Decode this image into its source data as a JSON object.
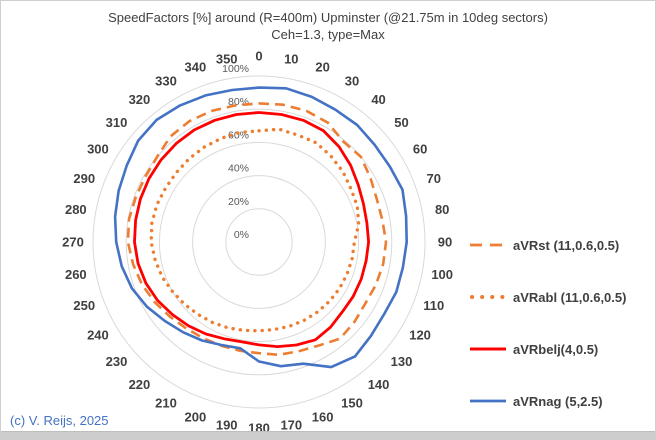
{
  "title": "SpeedFactors [%] around (R=400m) Upminster (@21.75m in 10deg sectors)",
  "subtitle": "Ceh=1.3, type=Max",
  "copyright": "(c) V. Reijs, 2025",
  "colors": {
    "orange_series": "#ED7D31",
    "red_series": "#FF0000",
    "blue_series": "#4472C4",
    "gridline": "#D9D9D9",
    "label_dark": "#404040",
    "label_gray": "#595959",
    "copyright_blue": "#4472C4"
  },
  "chart_data": {
    "type": "radar",
    "angle_unit": "deg_compass_clockwise_from_top",
    "categories": [
      "0",
      "10",
      "20",
      "30",
      "40",
      "50",
      "60",
      "70",
      "80",
      "90",
      "100",
      "110",
      "120",
      "130",
      "140",
      "150",
      "160",
      "170",
      "180",
      "190",
      "200",
      "210",
      "220",
      "230",
      "240",
      "250",
      "260",
      "270",
      "280",
      "290",
      "300",
      "310",
      "320",
      "330",
      "340",
      "350"
    ],
    "radial_ticks": [
      "0%",
      "20%",
      "40%",
      "60%",
      "80%",
      "100%"
    ],
    "rlim": [
      0,
      100
    ],
    "grid": true,
    "legend_position": "right",
    "series": [
      {
        "name": "aVRst (11,0.6,0.5)",
        "color": "#ED7D31",
        "style": "dashed",
        "values": [
          83.5,
          84,
          84,
          83,
          79,
          80,
          77.5,
          75.5,
          75.5,
          76.5,
          76,
          75,
          74,
          75,
          76,
          72,
          70,
          69,
          67,
          66.5,
          66.5,
          67,
          68,
          70,
          72.5,
          75,
          77,
          79,
          79.5,
          79,
          79,
          80,
          83,
          84,
          84,
          83.5
        ]
      },
      {
        "name": "aVRabl (11,0.6,0.5)",
        "color": "#ED7D31",
        "style": "dotted",
        "values": [
          67,
          69,
          68.5,
          69,
          67.5,
          66,
          64,
          63,
          61,
          57.5,
          57,
          56.5,
          56,
          55.5,
          55,
          54.5,
          54,
          53.5,
          53.5,
          54,
          55,
          56,
          57,
          58.5,
          60,
          62,
          63.5,
          65,
          65.5,
          65.5,
          65,
          65,
          65.5,
          66,
          66.5,
          67
        ]
      },
      {
        "name": "aVRbelj(4,0.5)",
        "color": "#FF0000",
        "style": "solid",
        "values": [
          78,
          78,
          78,
          77.5,
          75,
          72,
          69,
          67,
          66,
          66,
          65.5,
          65.5,
          65.5,
          65.5,
          67,
          68,
          66,
          64,
          62,
          61,
          62,
          64,
          66,
          68,
          70.5,
          72.5,
          74,
          75,
          75.5,
          76,
          76.5,
          77,
          77.5,
          78,
          78,
          78
        ]
      },
      {
        "name": "aVRnag (5,2.5)",
        "color": "#4472C4",
        "style": "solid",
        "values": [
          93,
          94,
          93,
          92,
          92,
          91,
          91,
          92,
          90,
          89,
          88,
          88,
          87,
          88,
          90,
          87,
          78,
          76,
          72,
          65,
          66,
          68.5,
          71,
          74,
          78,
          81.5,
          84,
          86,
          88,
          90,
          92,
          95,
          96,
          95,
          94,
          93
        ]
      }
    ]
  }
}
